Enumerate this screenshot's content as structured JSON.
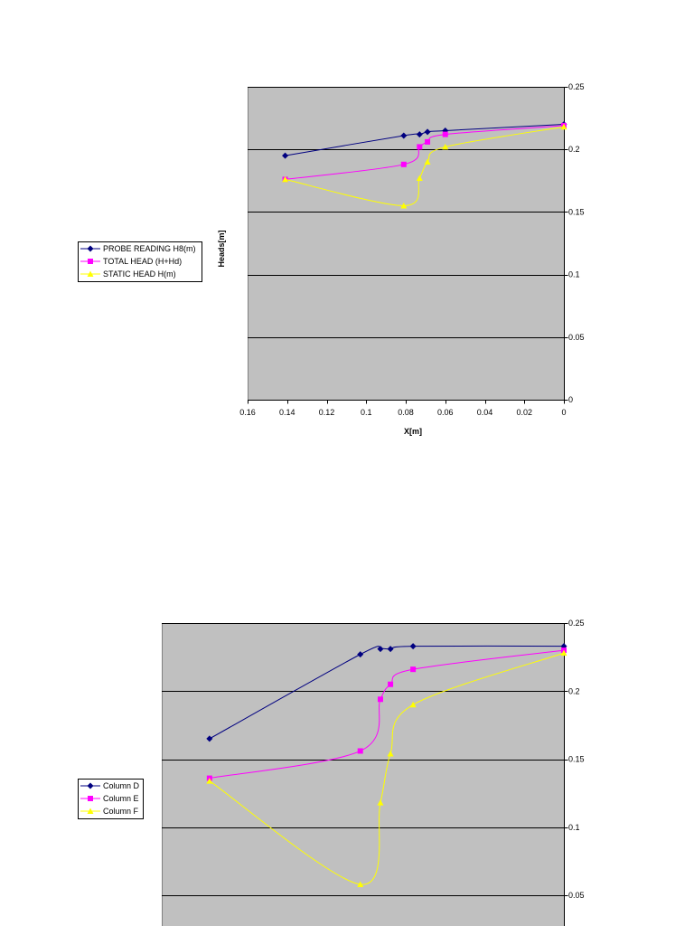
{
  "chart_data": [
    {
      "type": "line",
      "smooth": true,
      "xlabel": "X[m]",
      "ylabel": "Heads[m]",
      "xlim": [
        0.16,
        0
      ],
      "ylim": [
        0,
        0.25
      ],
      "xticks": [
        0.16,
        0.14,
        0.12,
        0.1,
        0.08,
        0.06,
        0.04,
        0.02,
        0
      ],
      "yticks": [
        0.25,
        0.2,
        0.15,
        0.1,
        0.05,
        0
      ],
      "y_axis_side": "right",
      "grid": true,
      "legend": "left",
      "plot_background": "#C0C0C0",
      "x": [
        0.141,
        0.081,
        0.073,
        0.069,
        0.06,
        0
      ],
      "series": [
        {
          "name": "PROBE READING H8(m)",
          "color": "#000080",
          "marker": "diamond",
          "values": [
            0.195,
            0.211,
            0.212,
            0.214,
            0.215,
            0.22
          ]
        },
        {
          "name": "TOTAL HEAD (H+Hd)",
          "color": "#FF00FF",
          "marker": "square",
          "values": [
            0.176,
            0.188,
            0.202,
            0.206,
            0.212,
            0.219
          ]
        },
        {
          "name": "STATIC HEAD H(m)",
          "color": "#FFFF00",
          "marker": "triangle",
          "values": [
            0.176,
            0.155,
            0.177,
            0.19,
            0.202,
            0.218
          ]
        }
      ]
    },
    {
      "type": "line",
      "smooth": true,
      "xlim": [
        0.16,
        0
      ],
      "ylim": [
        0,
        0.25
      ],
      "yticks": [
        0.25,
        0.2,
        0.15,
        0.1,
        0.05
      ],
      "y_axis_side": "right",
      "grid": true,
      "legend": "left",
      "plot_background": "#C0C0C0",
      "x": [
        0.141,
        0.081,
        0.073,
        0.069,
        0.06,
        0
      ],
      "series": [
        {
          "name": "Column D",
          "color": "#000080",
          "marker": "diamond",
          "values": [
            0.165,
            0.227,
            0.231,
            0.231,
            0.233,
            0.233
          ]
        },
        {
          "name": "Column E",
          "color": "#FF00FF",
          "marker": "square",
          "values": [
            0.136,
            0.156,
            0.194,
            0.205,
            0.216,
            0.23
          ]
        },
        {
          "name": "Column F",
          "color": "#FFFF00",
          "marker": "triangle",
          "values": [
            0.134,
            0.058,
            0.118,
            0.154,
            0.19,
            0.228
          ]
        }
      ]
    }
  ]
}
